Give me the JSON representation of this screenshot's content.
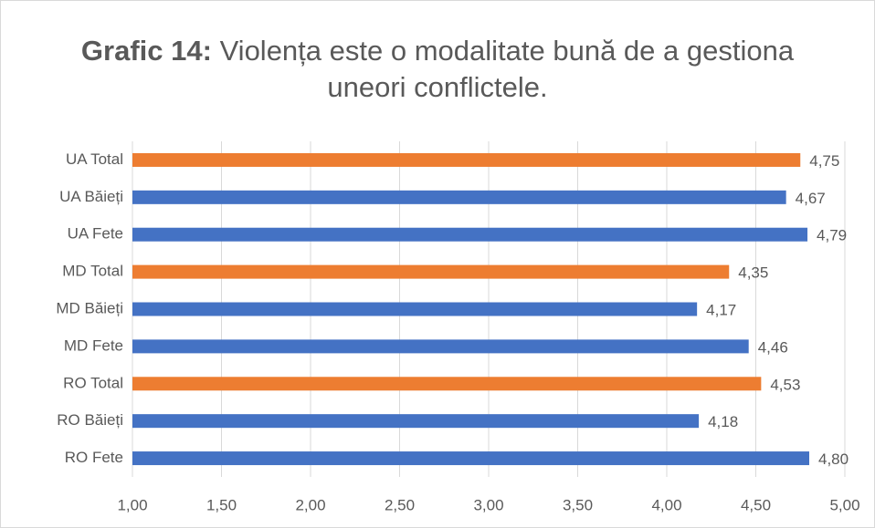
{
  "chart_data": {
    "type": "bar",
    "orientation": "horizontal",
    "title_bold": "Grafic 14:",
    "title": "Violența este o modalitate bună de a gestiona uneori conflictele.",
    "categories": [
      "UA Total",
      "UA Băieți",
      "UA Fete",
      "MD Total",
      "MD Băieți",
      "MD Fete",
      "RO Total",
      "RO Băieți",
      "RO Fete"
    ],
    "values": [
      4.75,
      4.67,
      4.79,
      4.35,
      4.17,
      4.46,
      4.53,
      4.18,
      4.8
    ],
    "value_labels": [
      "4,75",
      "4,67",
      "4,79",
      "4,35",
      "4,17",
      "4,46",
      "4,53",
      "4,18",
      "4,80"
    ],
    "colors": [
      "#ed7d31",
      "#4472c4",
      "#4472c4",
      "#ed7d31",
      "#4472c4",
      "#4472c4",
      "#ed7d31",
      "#4472c4",
      "#4472c4"
    ],
    "xlim": [
      1,
      5
    ],
    "xticks": [
      {
        "value": 1,
        "label": "1,00"
      },
      {
        "value": 1.5,
        "label": "1,50"
      },
      {
        "value": 2,
        "label": "2,00"
      },
      {
        "value": 2.5,
        "label": "2,50"
      },
      {
        "value": 3,
        "label": "3,00"
      },
      {
        "value": 3.5,
        "label": "3,50"
      },
      {
        "value": 4,
        "label": "4,00"
      },
      {
        "value": 4.5,
        "label": "4,50"
      },
      {
        "value": 5,
        "label": "5,00"
      }
    ],
    "grid": true
  }
}
